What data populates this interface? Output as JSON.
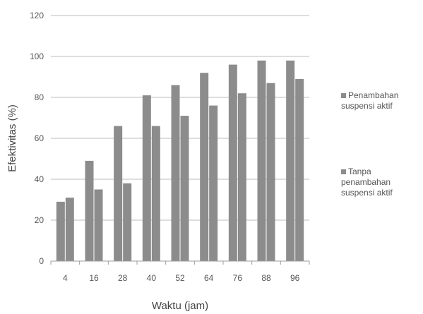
{
  "chart_data": {
    "type": "bar",
    "xlabel": "Waktu (jam)",
    "ylabel": "Efektivitas (%)",
    "ylim": [
      0,
      120
    ],
    "yticks": [
      0,
      20,
      40,
      60,
      80,
      100,
      120
    ],
    "grid": true,
    "legend_position": "right",
    "categories": [
      "4",
      "16",
      "28",
      "40",
      "52",
      "64",
      "76",
      "88",
      "96"
    ],
    "series": [
      {
        "name": "Penambahan suspensi aktif",
        "color": "#8c8c8c",
        "values": [
          29,
          49,
          66,
          81,
          86,
          92,
          96,
          98,
          98
        ]
      },
      {
        "name": "Tanpa penambahan suspensi aktif",
        "color": "#8c8c8c",
        "values": [
          31,
          35,
          38,
          66,
          71,
          76,
          82,
          87,
          89
        ]
      }
    ]
  }
}
